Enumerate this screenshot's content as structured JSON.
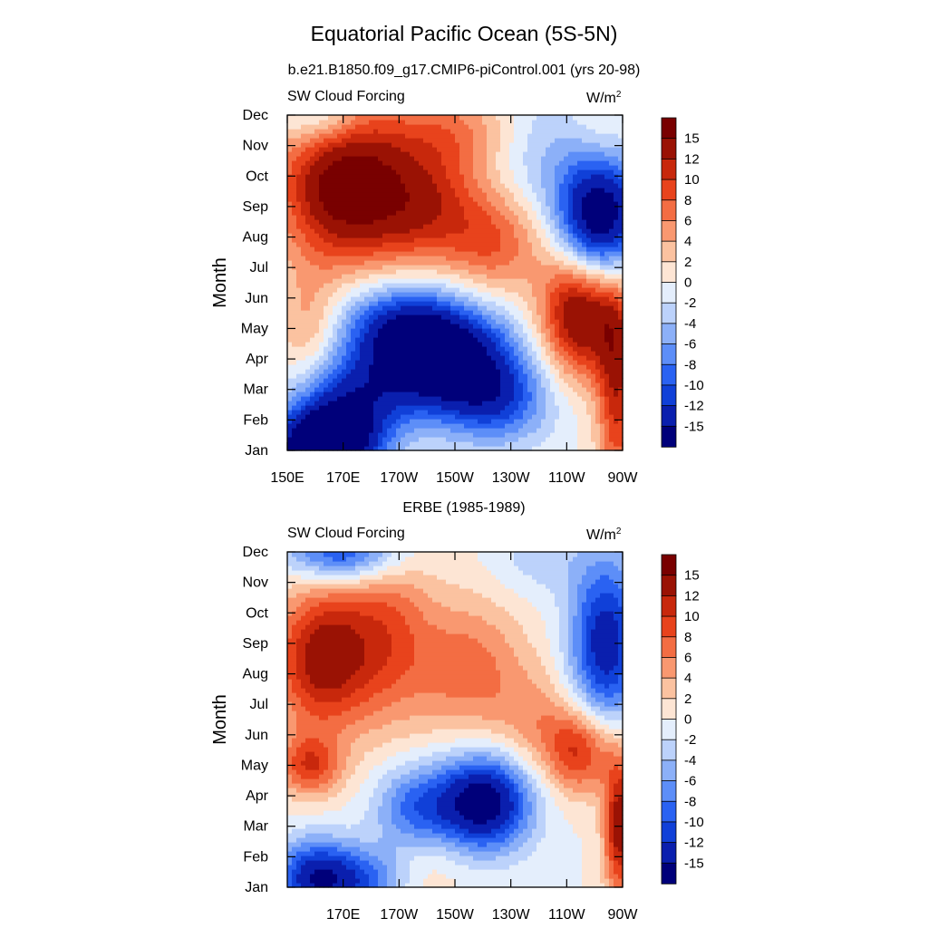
{
  "figure": {
    "title": "Equatorial Pacific Ocean (5S-5N)",
    "colors": {
      "-15": "#00007a",
      "-12": "#0a1fae",
      "-10": "#1040d8",
      "-8": "#2a62f2",
      "-6": "#5d8ef8",
      "-4": "#8cb0f8",
      "-2": "#bcd2fb",
      "0": "#e4eefc",
      "2": "#fde5d4",
      "4": "#fbc2a0",
      "6": "#f99870",
      "8": "#f36d43",
      "10": "#e8431c",
      "12": "#c8280c",
      "15": "#9a1204",
      "max": "#790000"
    }
  },
  "chart_data": [
    {
      "type": "heatmap",
      "subtitle": "b.e21.B1850.f09_g17.CMIP6-piControl.001 (yrs 20-98)",
      "left_label": "SW Cloud Forcing",
      "units_base": "W/m",
      "units_sup": "2",
      "ylabel": "Month",
      "xlabel": "",
      "xlim": [
        150,
        270
      ],
      "x_ticks": [
        {
          "label": "150E",
          "lon": 150
        },
        {
          "label": "170E",
          "lon": 170
        },
        {
          "label": "170W",
          "lon": 190
        },
        {
          "label": "150W",
          "lon": 210
        },
        {
          "label": "130W",
          "lon": 230
        },
        {
          "label": "110W",
          "lon": 250
        },
        {
          "label": "90W",
          "lon": 270
        }
      ],
      "y_ticks": [
        "Jan",
        "Feb",
        "Mar",
        "Apr",
        "May",
        "Jun",
        "Jul",
        "Aug",
        "Sep",
        "Oct",
        "Nov",
        "Dec"
      ],
      "colorbar_levels": [
        "15",
        "12",
        "10",
        "8",
        "6",
        "4",
        "2",
        "0",
        "-2",
        "-4",
        "-6",
        "-8",
        "-10",
        "-12",
        "-15"
      ],
      "features": [
        {
          "lon": 162,
          "month": 1.0,
          "value": -22,
          "sx": 12,
          "sy": 0.9
        },
        {
          "lon": 172,
          "month": 2.4,
          "value": -12,
          "sx": 14,
          "sy": 1.2
        },
        {
          "lon": 205,
          "month": 4.0,
          "value": -19,
          "sx": 18,
          "sy": 1.2
        },
        {
          "lon": 190,
          "month": 5.2,
          "value": -9,
          "sx": 16,
          "sy": 1.0
        },
        {
          "lon": 225,
          "month": 2.6,
          "value": -9,
          "sx": 14,
          "sy": 1.0
        },
        {
          "lon": 158,
          "month": 5.0,
          "value": 5,
          "sx": 8,
          "sy": 1.3
        },
        {
          "lon": 170,
          "month": 9.7,
          "value": 17,
          "sx": 16,
          "sy": 1.8
        },
        {
          "lon": 200,
          "month": 9.0,
          "value": 10,
          "sx": 15,
          "sy": 1.4
        },
        {
          "lon": 225,
          "month": 7.8,
          "value": 7,
          "sx": 12,
          "sy": 1.2
        },
        {
          "lon": 255,
          "month": 5.6,
          "value": 17,
          "sx": 10,
          "sy": 1.5
        },
        {
          "lon": 268,
          "month": 3.2,
          "value": 11,
          "sx": 5,
          "sy": 2.6
        },
        {
          "lon": 262,
          "month": 8.6,
          "value": -20,
          "sx": 11,
          "sy": 1.6
        },
        {
          "lon": 238,
          "month": 11.0,
          "value": -4,
          "sx": 14,
          "sy": 1.5
        },
        {
          "lon": 262,
          "month": 11.2,
          "value": 3,
          "sx": 8,
          "sy": 1.2
        },
        {
          "lon": 162,
          "month": 12.0,
          "value": -6,
          "sx": 10,
          "sy": 0.8
        },
        {
          "lon": 210,
          "month": 11.5,
          "value": 6,
          "sx": 18,
          "sy": 1.0
        }
      ]
    },
    {
      "type": "heatmap",
      "subtitle": "ERBE (1985-1989)",
      "left_label": "SW Cloud Forcing",
      "units_base": "W/m",
      "units_sup": "2",
      "ylabel": "Month",
      "xlabel": "",
      "xlim": [
        150,
        270
      ],
      "x_ticks": [
        {
          "label": "170E",
          "lon": 170
        },
        {
          "label": "170W",
          "lon": 190
        },
        {
          "label": "150W",
          "lon": 210
        },
        {
          "label": "130W",
          "lon": 230
        },
        {
          "label": "110W",
          "lon": 250
        },
        {
          "label": "90W",
          "lon": 270
        }
      ],
      "y_ticks": [
        "Jan",
        "Feb",
        "Mar",
        "Apr",
        "May",
        "Jun",
        "Jul",
        "Aug",
        "Sep",
        "Oct",
        "Nov",
        "Dec"
      ],
      "colorbar_levels": [
        "15",
        "12",
        "10",
        "8",
        "6",
        "4",
        "2",
        "0",
        "-2",
        "-4",
        "-6",
        "-8",
        "-10",
        "-12",
        "-15"
      ],
      "features": [
        {
          "lon": 160,
          "month": 1.3,
          "value": -14,
          "sx": 10,
          "sy": 0.9
        },
        {
          "lon": 178,
          "month": 1.2,
          "value": -8,
          "sx": 10,
          "sy": 0.8
        },
        {
          "lon": 220,
          "month": 3.8,
          "value": -18,
          "sx": 12,
          "sy": 1.1
        },
        {
          "lon": 195,
          "month": 3.6,
          "value": -8,
          "sx": 10,
          "sy": 1.0
        },
        {
          "lon": 170,
          "month": 12.0,
          "value": -12,
          "sx": 14,
          "sy": 0.7
        },
        {
          "lon": 264,
          "month": 9.0,
          "value": -14,
          "sx": 9,
          "sy": 2.0
        },
        {
          "lon": 240,
          "month": 11.8,
          "value": -3,
          "sx": 12,
          "sy": 0.9
        },
        {
          "lon": 162,
          "month": 8.5,
          "value": 13,
          "sx": 12,
          "sy": 1.7
        },
        {
          "lon": 185,
          "month": 9.2,
          "value": 8,
          "sx": 12,
          "sy": 2.0
        },
        {
          "lon": 215,
          "month": 8.2,
          "value": 7,
          "sx": 14,
          "sy": 1.6
        },
        {
          "lon": 158,
          "month": 5.0,
          "value": 9,
          "sx": 8,
          "sy": 0.7
        },
        {
          "lon": 255,
          "month": 5.5,
          "value": 11,
          "sx": 9,
          "sy": 1.0
        },
        {
          "lon": 269,
          "month": 3.0,
          "value": 14,
          "sx": 4,
          "sy": 1.6
        },
        {
          "lon": 238,
          "month": 6.5,
          "value": 4,
          "sx": 10,
          "sy": 1.2
        },
        {
          "lon": 200,
          "month": 1.8,
          "value": 2,
          "sx": 10,
          "sy": 0.8
        }
      ]
    }
  ]
}
